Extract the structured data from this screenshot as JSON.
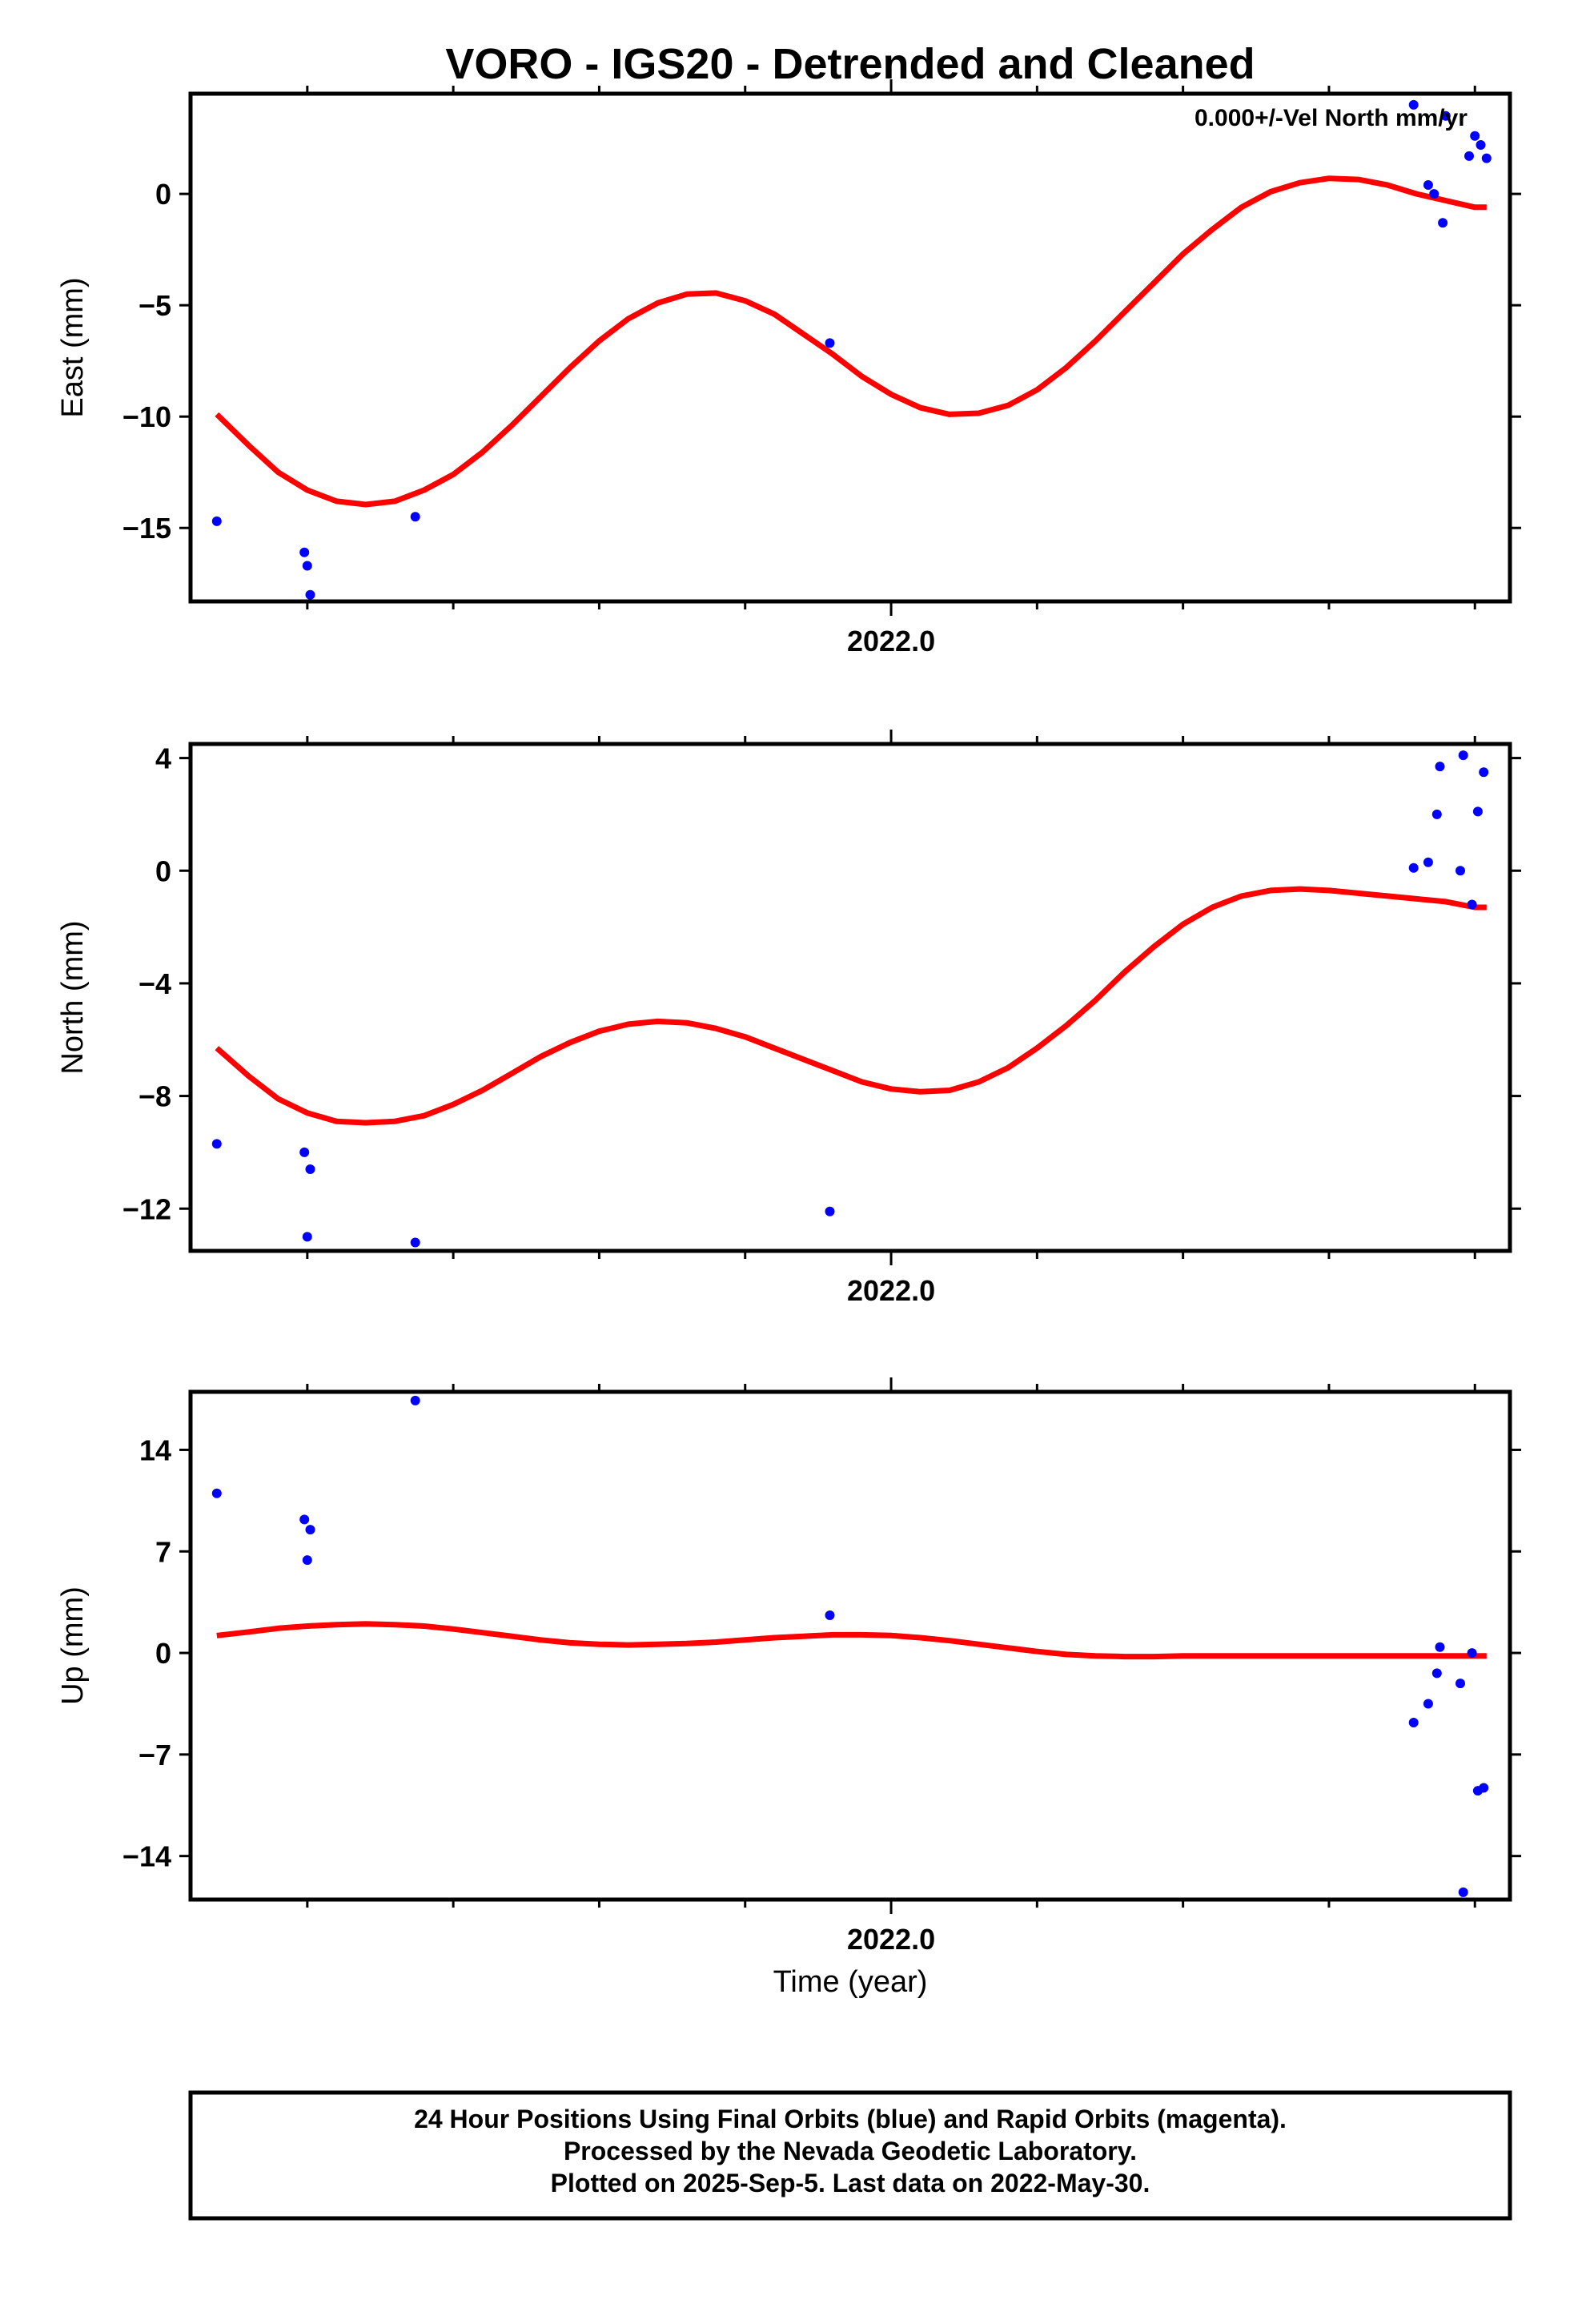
{
  "title": "VORO - IGS20 - Detrended and Cleaned",
  "annotation": "0.000+/-Vel North mm/yr",
  "x_axis_label": "Time (year)",
  "footer": {
    "line1": "24 Hour Positions Using Final Orbits (blue) and Rapid Orbits (magenta).",
    "line2": "Processed by the Nevada Geodetic Laboratory.",
    "line3": "Plotted on 2025-Sep-5. Last data on 2022-May-30."
  },
  "colors": {
    "points": "#0000ff",
    "fit": "#ff0000",
    "frame": "#000000"
  },
  "chart_data": [
    {
      "type": "scatter",
      "ylabel": "East (mm)",
      "xlim": [
        2021.76,
        2022.212
      ],
      "ylim": [
        -18.3,
        4.5
      ],
      "yticks": [
        -15,
        -10,
        -5,
        0
      ],
      "ytick_labels": [
        "−15",
        "−10",
        "−5",
        "0"
      ],
      "xtick_major": 2022.0,
      "xtick_label": "2022.0",
      "points": {
        "x": [
          2021.769,
          2021.799,
          2021.8,
          2021.801,
          2021.837,
          2021.979,
          2022.179,
          2022.184,
          2022.186,
          2022.189,
          2022.19,
          2022.198,
          2022.2,
          2022.202,
          2022.204
        ],
        "y": [
          -14.7,
          -16.1,
          -16.7,
          -18.0,
          -14.5,
          -6.7,
          4.0,
          0.4,
          0.0,
          -1.3,
          3.5,
          1.7,
          2.6,
          2.2,
          1.6
        ]
      },
      "fit": {
        "x": [
          2021.769,
          2021.78,
          2021.79,
          2021.8,
          2021.81,
          2021.82,
          2021.83,
          2021.84,
          2021.85,
          2021.86,
          2021.87,
          2021.88,
          2021.89,
          2021.9,
          2021.91,
          2021.92,
          2021.93,
          2021.94,
          2021.95,
          2021.96,
          2021.97,
          2021.98,
          2021.99,
          2022.0,
          2022.01,
          2022.02,
          2022.03,
          2022.04,
          2022.05,
          2022.06,
          2022.07,
          2022.08,
          2022.09,
          2022.1,
          2022.11,
          2022.12,
          2022.13,
          2022.14,
          2022.15,
          2022.16,
          2022.17,
          2022.18,
          2022.19,
          2022.2,
          2022.204
        ],
        "y": [
          -9.9,
          -11.3,
          -12.5,
          -13.3,
          -13.8,
          -13.95,
          -13.8,
          -13.3,
          -12.6,
          -11.6,
          -10.4,
          -9.1,
          -7.8,
          -6.6,
          -5.6,
          -4.9,
          -4.5,
          -4.45,
          -4.8,
          -5.4,
          -6.3,
          -7.2,
          -8.2,
          -9.0,
          -9.6,
          -9.9,
          -9.85,
          -9.5,
          -8.8,
          -7.8,
          -6.6,
          -5.3,
          -4.0,
          -2.7,
          -1.6,
          -0.6,
          0.1,
          0.5,
          0.7,
          0.65,
          0.4,
          0.0,
          -0.3,
          -0.6,
          -0.6
        ]
      }
    },
    {
      "type": "scatter",
      "ylabel": "North (mm)",
      "xlim": [
        2021.76,
        2022.212
      ],
      "ylim": [
        -13.5,
        4.5
      ],
      "yticks": [
        -12,
        -8,
        -4,
        0,
        4
      ],
      "ytick_labels": [
        "−12",
        "−8",
        "−4",
        "0",
        "4"
      ],
      "xtick_major": 2022.0,
      "xtick_label": "2022.0",
      "points": {
        "x": [
          2021.769,
          2021.799,
          2021.8,
          2021.801,
          2021.837,
          2021.979,
          2022.179,
          2022.184,
          2022.187,
          2022.188,
          2022.195,
          2022.196,
          2022.199,
          2022.201,
          2022.203
        ],
        "y": [
          -9.7,
          -10.0,
          -13.0,
          -10.6,
          -13.2,
          -12.1,
          0.1,
          0.3,
          2.0,
          3.7,
          0.0,
          4.1,
          -1.2,
          2.1,
          3.5
        ]
      },
      "fit": {
        "x": [
          2021.769,
          2021.78,
          2021.79,
          2021.8,
          2021.81,
          2021.82,
          2021.83,
          2021.84,
          2021.85,
          2021.86,
          2021.87,
          2021.88,
          2021.89,
          2021.9,
          2021.91,
          2021.92,
          2021.93,
          2021.94,
          2021.95,
          2021.96,
          2021.97,
          2021.98,
          2021.99,
          2022.0,
          2022.01,
          2022.02,
          2022.03,
          2022.04,
          2022.05,
          2022.06,
          2022.07,
          2022.08,
          2022.09,
          2022.1,
          2022.11,
          2022.12,
          2022.13,
          2022.14,
          2022.15,
          2022.16,
          2022.17,
          2022.18,
          2022.19,
          2022.2,
          2022.204
        ],
        "y": [
          -6.3,
          -7.3,
          -8.1,
          -8.6,
          -8.9,
          -8.95,
          -8.9,
          -8.7,
          -8.3,
          -7.8,
          -7.2,
          -6.6,
          -6.1,
          -5.7,
          -5.45,
          -5.35,
          -5.4,
          -5.6,
          -5.9,
          -6.3,
          -6.7,
          -7.1,
          -7.5,
          -7.75,
          -7.85,
          -7.8,
          -7.5,
          -7.0,
          -6.3,
          -5.5,
          -4.6,
          -3.6,
          -2.7,
          -1.9,
          -1.3,
          -0.9,
          -0.7,
          -0.65,
          -0.7,
          -0.8,
          -0.9,
          -1.0,
          -1.1,
          -1.3,
          -1.3
        ]
      }
    },
    {
      "type": "scatter",
      "ylabel": "Up (mm)",
      "xlim": [
        2021.76,
        2022.212
      ],
      "ylim": [
        -17,
        18
      ],
      "yticks": [
        -14,
        -7,
        0,
        7,
        14
      ],
      "ytick_labels": [
        "−14",
        "−7",
        "0",
        "7",
        "14"
      ],
      "xtick_major": 2022.0,
      "xtick_label": "2022.0",
      "points": {
        "x": [
          2021.769,
          2021.799,
          2021.8,
          2021.801,
          2021.837,
          2021.979,
          2022.179,
          2022.184,
          2022.187,
          2022.188,
          2022.195,
          2022.196,
          2022.199,
          2022.201,
          2022.203
        ],
        "y": [
          11.0,
          9.2,
          6.4,
          8.5,
          17.4,
          2.6,
          -4.8,
          -3.5,
          -1.4,
          0.4,
          -2.1,
          -16.5,
          0.0,
          -9.5,
          -9.3
        ]
      },
      "fit": {
        "x": [
          2021.769,
          2021.78,
          2021.79,
          2021.8,
          2021.81,
          2021.82,
          2021.83,
          2021.84,
          2021.85,
          2021.86,
          2021.87,
          2021.88,
          2021.89,
          2021.9,
          2021.91,
          2021.92,
          2021.93,
          2021.94,
          2021.95,
          2021.96,
          2021.97,
          2021.98,
          2021.99,
          2022.0,
          2022.01,
          2022.02,
          2022.03,
          2022.04,
          2022.05,
          2022.06,
          2022.07,
          2022.08,
          2022.09,
          2022.1,
          2022.11,
          2022.12,
          2022.13,
          2022.14,
          2022.15,
          2022.16,
          2022.17,
          2022.18,
          2022.19,
          2022.2,
          2022.204
        ],
        "y": [
          1.2,
          1.45,
          1.7,
          1.85,
          1.95,
          2.0,
          1.95,
          1.85,
          1.65,
          1.4,
          1.15,
          0.9,
          0.7,
          0.6,
          0.55,
          0.6,
          0.65,
          0.75,
          0.9,
          1.05,
          1.15,
          1.25,
          1.25,
          1.2,
          1.05,
          0.85,
          0.6,
          0.35,
          0.1,
          -0.1,
          -0.2,
          -0.25,
          -0.25,
          -0.2,
          -0.2,
          -0.2,
          -0.2,
          -0.2,
          -0.2,
          -0.2,
          -0.2,
          -0.2,
          -0.2,
          -0.2,
          -0.2
        ]
      }
    }
  ]
}
